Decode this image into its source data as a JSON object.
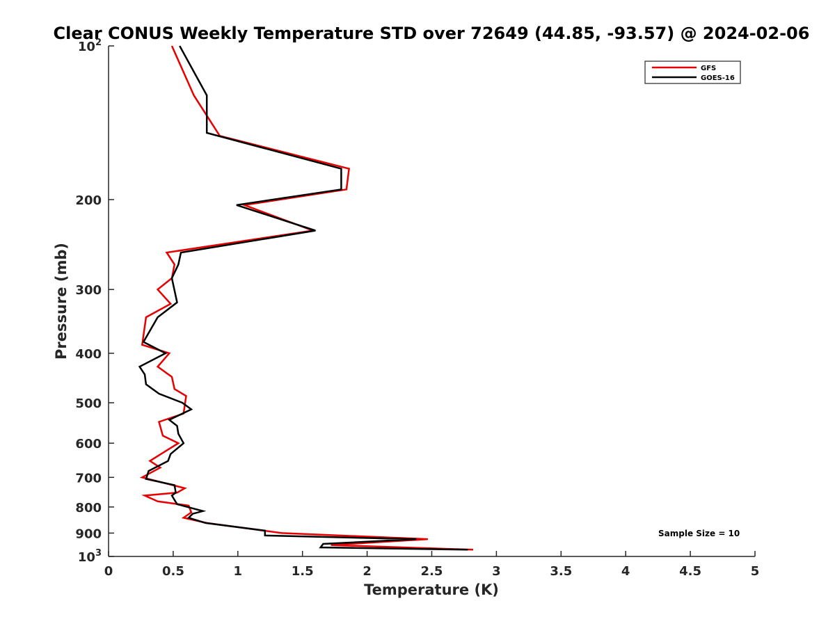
{
  "chart_data": {
    "type": "line",
    "title": "Clear CONUS Weekly Temperature STD over 72649 (44.85, -93.57) @ 2024-02-06",
    "xlabel": "Temperature (K)",
    "ylabel": "Pressure (mb)",
    "xlim": [
      0,
      5
    ],
    "ylim": [
      1000,
      100
    ],
    "y_scale": "log",
    "y_reversed": true,
    "x_ticks": [
      "0",
      "0.5",
      "1",
      "1.5",
      "2",
      "2.5",
      "3",
      "3.5",
      "4",
      "4.5",
      "5"
    ],
    "x_tick_values": [
      0,
      0.5,
      1,
      1.5,
      2,
      2.5,
      3,
      3.5,
      4,
      4.5,
      5
    ],
    "y_ticks": [
      {
        "value": 100,
        "label": "10",
        "sup": "2"
      },
      {
        "value": 200,
        "label": "200"
      },
      {
        "value": 300,
        "label": "300"
      },
      {
        "value": 400,
        "label": "400"
      },
      {
        "value": 500,
        "label": "500"
      },
      {
        "value": 600,
        "label": "600"
      },
      {
        "value": 700,
        "label": "700"
      },
      {
        "value": 800,
        "label": "800"
      },
      {
        "value": 900,
        "label": "900"
      },
      {
        "value": 1000,
        "label": "10",
        "sup": "3"
      }
    ],
    "grid": false,
    "legend_position": "top-right",
    "annotation": "Sample Size = 10",
    "series": [
      {
        "name": "GFS",
        "color": "#e60000",
        "points": [
          [
            0.49,
            100
          ],
          [
            0.66,
            125
          ],
          [
            0.86,
            150
          ],
          [
            1.86,
            174
          ],
          [
            1.84,
            191
          ],
          [
            1.05,
            205
          ],
          [
            1.58,
            230
          ],
          [
            0.45,
            254
          ],
          [
            0.51,
            268
          ],
          [
            0.49,
            285
          ],
          [
            0.38,
            300
          ],
          [
            0.48,
            320
          ],
          [
            0.29,
            340
          ],
          [
            0.26,
            385
          ],
          [
            0.47,
            400
          ],
          [
            0.38,
            425
          ],
          [
            0.49,
            445
          ],
          [
            0.51,
            470
          ],
          [
            0.6,
            485
          ],
          [
            0.58,
            525
          ],
          [
            0.39,
            545
          ],
          [
            0.42,
            580
          ],
          [
            0.54,
            600
          ],
          [
            0.45,
            620
          ],
          [
            0.32,
            650
          ],
          [
            0.4,
            670
          ],
          [
            0.26,
            700
          ],
          [
            0.59,
            735
          ],
          [
            0.53,
            750
          ],
          [
            0.28,
            760
          ],
          [
            0.38,
            780
          ],
          [
            0.62,
            795
          ],
          [
            0.64,
            820
          ],
          [
            0.58,
            840
          ],
          [
            0.76,
            860
          ],
          [
            1.34,
            900
          ],
          [
            2.47,
            925
          ],
          [
            1.72,
            950
          ],
          [
            2.82,
            970
          ]
        ]
      },
      {
        "name": "GOES-16",
        "color": "#000000",
        "points": [
          [
            0.55,
            100
          ],
          [
            0.76,
            125
          ],
          [
            0.76,
            148
          ],
          [
            1.8,
            174
          ],
          [
            1.8,
            191
          ],
          [
            0.99,
            205
          ],
          [
            1.6,
            230
          ],
          [
            0.56,
            254
          ],
          [
            0.54,
            268
          ],
          [
            0.49,
            285
          ],
          [
            0.53,
            318
          ],
          [
            0.38,
            340
          ],
          [
            0.27,
            380
          ],
          [
            0.44,
            400
          ],
          [
            0.24,
            425
          ],
          [
            0.28,
            440
          ],
          [
            0.29,
            460
          ],
          [
            0.39,
            480
          ],
          [
            0.57,
            500
          ],
          [
            0.64,
            515
          ],
          [
            0.47,
            540
          ],
          [
            0.53,
            555
          ],
          [
            0.54,
            575
          ],
          [
            0.58,
            600
          ],
          [
            0.48,
            630
          ],
          [
            0.46,
            650
          ],
          [
            0.31,
            680
          ],
          [
            0.29,
            705
          ],
          [
            0.51,
            725
          ],
          [
            0.52,
            750
          ],
          [
            0.49,
            760
          ],
          [
            0.53,
            790
          ],
          [
            0.73,
            815
          ],
          [
            0.65,
            825
          ],
          [
            0.62,
            840
          ],
          [
            0.75,
            860
          ],
          [
            1.21,
            890
          ],
          [
            1.21,
            910
          ],
          [
            2.38,
            925
          ],
          [
            1.66,
            945
          ],
          [
            1.64,
            960
          ],
          [
            2.78,
            970
          ]
        ]
      }
    ]
  }
}
